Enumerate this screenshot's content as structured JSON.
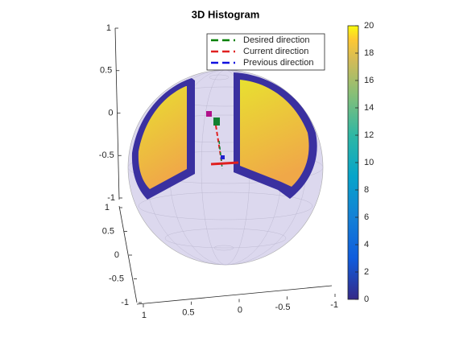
{
  "chart_data": {
    "type": "histogram3d",
    "title": "3D Histogram",
    "series": [
      {
        "name": "Desired direction",
        "color": "#008000"
      },
      {
        "name": "Current direction",
        "color": "#e02020"
      },
      {
        "name": "Previous direction",
        "color": "#1010e0"
      }
    ],
    "xlim": [
      1,
      -1
    ],
    "xticks": [
      1,
      0.5,
      0,
      -0.5,
      -1
    ],
    "ylim": [
      1,
      -1
    ],
    "yticks": [
      1,
      0.5,
      0,
      -0.5,
      -1
    ],
    "zlim": [
      1,
      -1
    ],
    "zticks": [
      1,
      0.5,
      0,
      -0.5,
      -1
    ],
    "clim": [
      0,
      20
    ],
    "cticks": [
      0,
      2,
      4,
      6,
      8,
      10,
      12,
      14,
      16,
      18,
      20
    ],
    "colormap": "parula"
  }
}
